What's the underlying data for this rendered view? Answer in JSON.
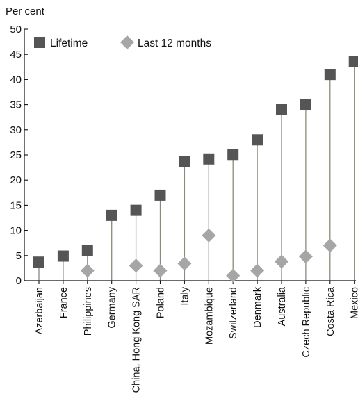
{
  "chart_data": {
    "type": "scatter",
    "ylabel": "Per cent",
    "ylim": [
      0,
      50
    ],
    "yticks": [
      0,
      5,
      10,
      15,
      20,
      25,
      30,
      35,
      40,
      45,
      50
    ],
    "grid": false,
    "legend_placement": "top-left",
    "categories": [
      "Azerbaijan",
      "France",
      "Philippines",
      "Germany",
      "China, Hong Kong SAR",
      "Poland",
      "Italy",
      "Mozambique",
      "Switzerland",
      "Denmark",
      "Australia",
      "Czech Republic",
      "Costa Rica",
      "Mexico"
    ],
    "series": [
      {
        "name": "Lifetime",
        "marker": "square",
        "color": "#555555",
        "values": [
          3.7,
          4.9,
          6.0,
          13.0,
          14.0,
          17.0,
          23.7,
          24.2,
          25.1,
          28.0,
          34.0,
          35.0,
          41.0,
          43.6
        ]
      },
      {
        "name": "Last 12 months",
        "marker": "diamond",
        "color": "#a6a6a6",
        "values": [
          null,
          null,
          2.0,
          null,
          3.0,
          2.0,
          3.4,
          9.0,
          1.0,
          2.0,
          3.8,
          4.8,
          7.0,
          null
        ]
      }
    ],
    "stem_color": "#8a8a7a"
  }
}
